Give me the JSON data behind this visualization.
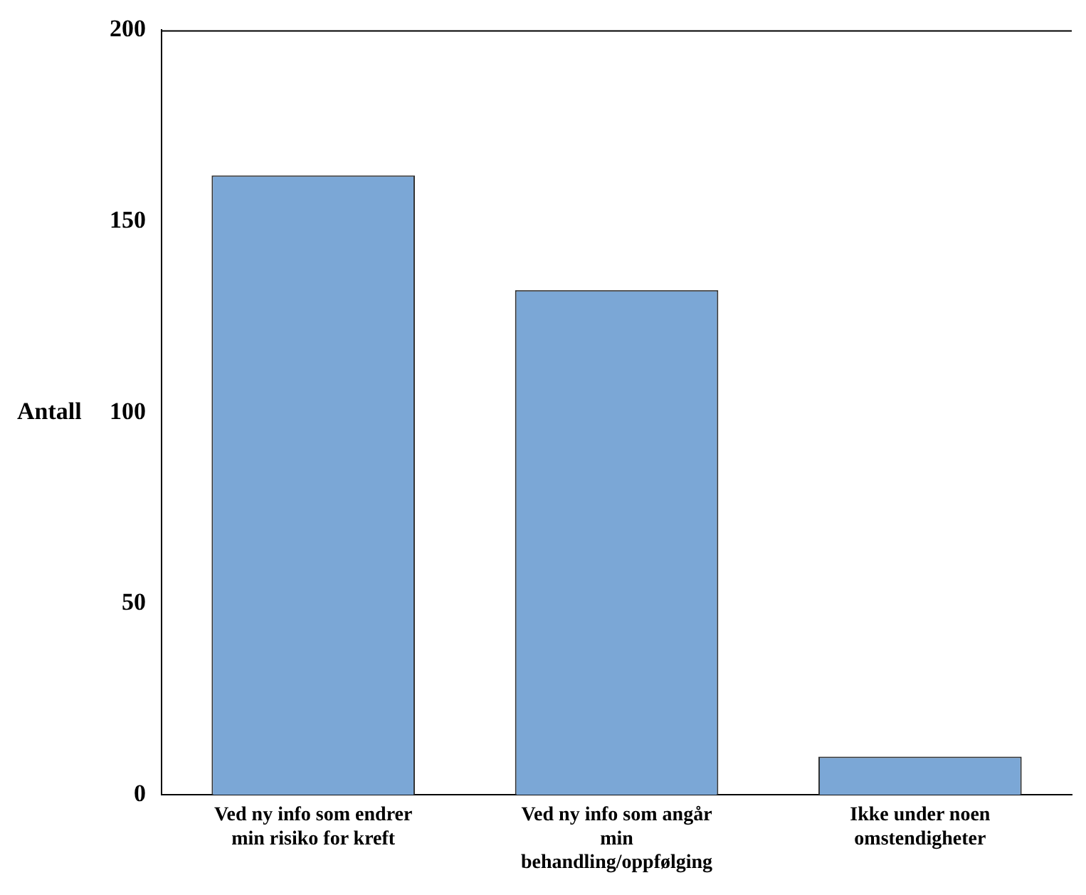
{
  "chart_data": {
    "type": "bar",
    "ylabel": "Antall",
    "categories": [
      "Ved ny info som endrer min risiko for kreft",
      "Ved ny info som angår min behandling/oppfølging",
      "Ikke under noen omstendigheter"
    ],
    "values": [
      162,
      132,
      10
    ],
    "color": "#7ba7d6",
    "ylim": [
      0,
      200
    ],
    "yticks": [
      0,
      50,
      100,
      150,
      200
    ],
    "grid": false
  }
}
